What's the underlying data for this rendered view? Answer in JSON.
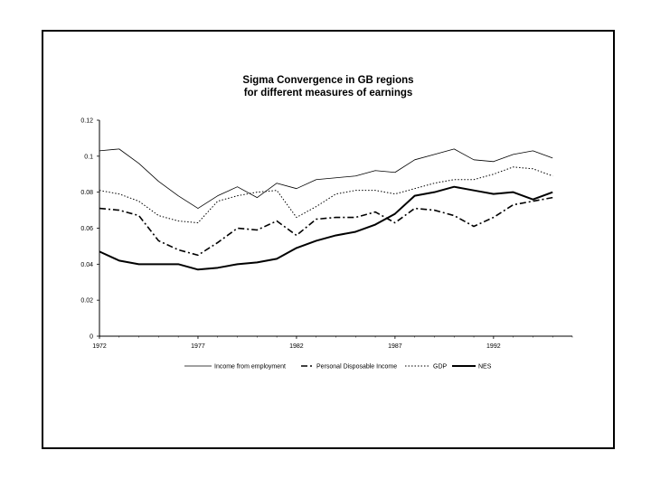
{
  "chart_data": {
    "type": "line",
    "title": [
      "Sigma Convergence in GB regions",
      "for different measures of earnings"
    ],
    "xlabel": "",
    "ylabel": "",
    "xlim": [
      1972,
      1996
    ],
    "ylim": [
      0,
      0.12
    ],
    "x_ticks": [
      1972,
      1977,
      1982,
      1987,
      1992
    ],
    "x_tick_labels": [
      "1972",
      "1977",
      "1982",
      "1987",
      "1992"
    ],
    "y_ticks": [
      0,
      0.02,
      0.04,
      0.06,
      0.08,
      0.1,
      0.12
    ],
    "y_tick_labels": [
      "0",
      "0.02",
      "0.04",
      "0.06",
      "0.08",
      "0.1",
      "0.12"
    ],
    "grid": false,
    "legend_position": "bottom",
    "x": [
      1972,
      1973,
      1974,
      1975,
      1976,
      1977,
      1978,
      1979,
      1980,
      1981,
      1982,
      1983,
      1984,
      1985,
      1986,
      1987,
      1988,
      1989,
      1990,
      1991,
      1992,
      1993,
      1994,
      1995
    ],
    "series": [
      {
        "name": "Income from employment",
        "style": "thin",
        "values": [
          0.103,
          0.104,
          0.096,
          0.086,
          0.078,
          0.071,
          0.078,
          0.083,
          0.077,
          0.085,
          0.082,
          0.087,
          0.088,
          0.089,
          0.092,
          0.091,
          0.098,
          0.101,
          0.104,
          0.098,
          0.097,
          0.101,
          0.103,
          0.099
        ]
      },
      {
        "name": "Personal Disposable Income",
        "style": "dashdot",
        "values": [
          0.071,
          0.07,
          0.067,
          0.053,
          0.048,
          0.045,
          0.052,
          0.06,
          0.059,
          0.064,
          0.056,
          0.065,
          0.066,
          0.066,
          0.069,
          0.063,
          0.071,
          0.07,
          0.067,
          0.061,
          0.066,
          0.073,
          0.075,
          0.077
        ]
      },
      {
        "name": "GDP",
        "style": "dotted",
        "values": [
          0.081,
          0.079,
          0.075,
          0.067,
          0.064,
          0.063,
          0.075,
          0.078,
          0.08,
          0.081,
          0.066,
          0.072,
          0.079,
          0.081,
          0.081,
          0.079,
          0.082,
          0.085,
          0.087,
          0.087,
          0.09,
          0.094,
          0.093,
          0.089
        ]
      },
      {
        "name": "NES",
        "style": "thick",
        "values": [
          0.047,
          0.042,
          0.04,
          0.04,
          0.04,
          0.037,
          0.038,
          0.04,
          0.041,
          0.043,
          0.049,
          0.053,
          0.056,
          0.058,
          0.062,
          0.068,
          0.078,
          0.08,
          0.083,
          0.081,
          0.079,
          0.08,
          0.076,
          0.08
        ]
      }
    ],
    "legend_labels": [
      "Income from employment",
      "Personal Disposable Income",
      "GDP",
      "NES"
    ]
  },
  "colors": {
    "line": "#000000",
    "background": "#ffffff"
  }
}
